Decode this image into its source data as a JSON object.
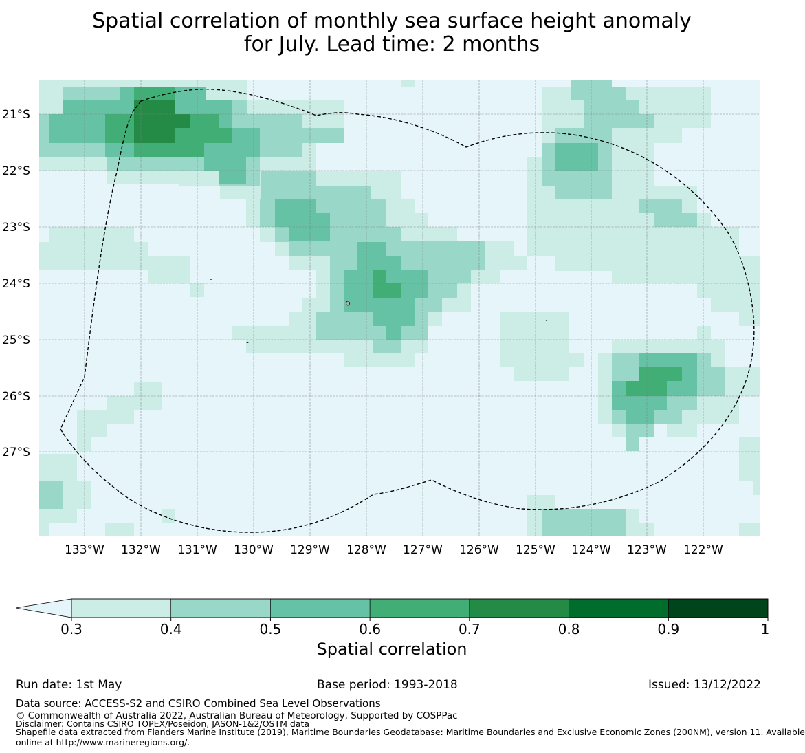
{
  "title": {
    "line1": "Spatial correlation of monthly sea surface height anomaly",
    "line2": "for July. Lead time: 2 months"
  },
  "map": {
    "lat_labels": [
      "21°S",
      "22°S",
      "23°S",
      "24°S",
      "25°S",
      "26°S",
      "27°S"
    ],
    "lon_labels": [
      "133°W",
      "132°W",
      "131°W",
      "130°W",
      "129°W",
      "128°W",
      "127°W",
      "126°W",
      "125°W",
      "124°W",
      "123°W",
      "122°W"
    ],
    "ocean_color": "#e5f5f9",
    "grid_color": "#7f7f7f",
    "boundary_style": "dashed black line (EEZ)"
  },
  "colorbar": {
    "label": "Spatial correlation",
    "ticks": [
      "0.3",
      "0.4",
      "0.5",
      "0.6",
      "0.7",
      "0.8",
      "0.9",
      "1"
    ],
    "colors": [
      "#ccece6",
      "#99d8c9",
      "#66c2a4",
      "#41ae76",
      "#238b45",
      "#006d2c",
      "#00441b"
    ],
    "under_color": "#e5f5f9",
    "extend": "min"
  },
  "footer": {
    "run_date": "Run date: 1st May",
    "base_period": "Base period: 1993-2018",
    "issued": "Issued: 13/12/2022",
    "data_source": "Data source: ACCESS-S2 and CSIRO Combined Sea Level Observations",
    "copyright": "© Commonwealth of Australia 2022, Australian Bureau of Meteorology, Supported by COSPPac",
    "disclaimer": "Disclaimer: Contains CSIRO TOPEX/Poseidon, JASON-1&2/OSTM data",
    "shapefile1": "Shapefile data extracted from Flanders Marine Institute (2019), Maritime Boundaries Geodatabase: Maritime Boundaries and Exclusive Economic Zones (200NM), version 11. Available",
    "shapefile2": "online at http://www.marineregions.org/."
  }
}
